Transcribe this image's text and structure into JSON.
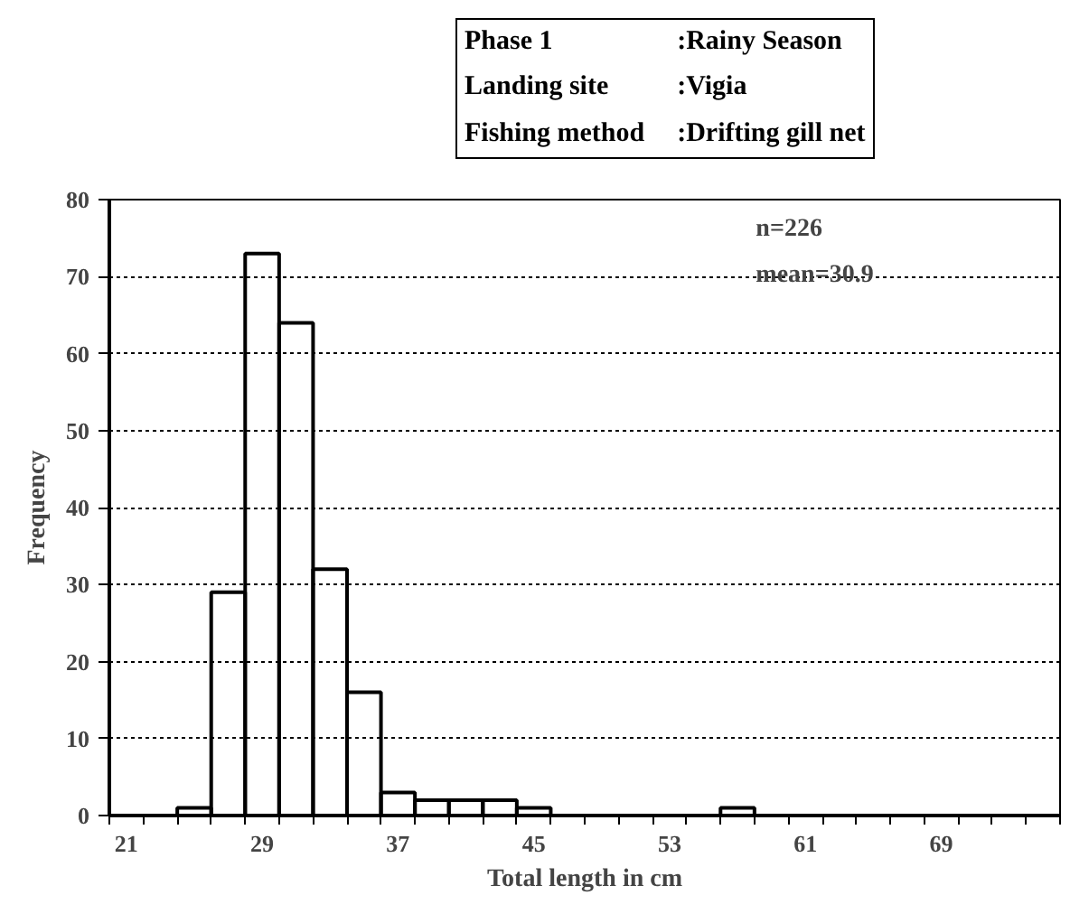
{
  "chart_data": {
    "type": "histogram",
    "bins": [
      20,
      22,
      24,
      26,
      28,
      30,
      32,
      34,
      36,
      38,
      40,
      42,
      44,
      46,
      48,
      50,
      52,
      54,
      56,
      58,
      60,
      62,
      64,
      66,
      68,
      70,
      72,
      74,
      76
    ],
    "values": [
      0,
      0,
      1,
      29,
      73,
      64,
      32,
      16,
      3,
      2,
      2,
      2,
      1,
      0,
      0,
      0,
      0,
      0,
      1,
      0,
      0,
      0,
      0,
      0,
      0,
      0,
      0,
      0
    ],
    "xlabel": "Total length in cm",
    "ylabel": "Frequency",
    "xlim": [
      20,
      76
    ],
    "xticks": [
      21,
      29,
      37,
      45,
      53,
      61,
      69
    ],
    "ylim": [
      0,
      80
    ],
    "yticks": [
      0,
      10,
      20,
      30,
      40,
      50,
      60,
      70,
      80
    ],
    "grid": "y",
    "annotations": [
      "Phase 1",
      ":Rainy Season",
      "Landing site",
      ":Vigia",
      "Fishing method",
      ":Drifting gill net",
      "n=226",
      "mean=30.9"
    ]
  }
}
